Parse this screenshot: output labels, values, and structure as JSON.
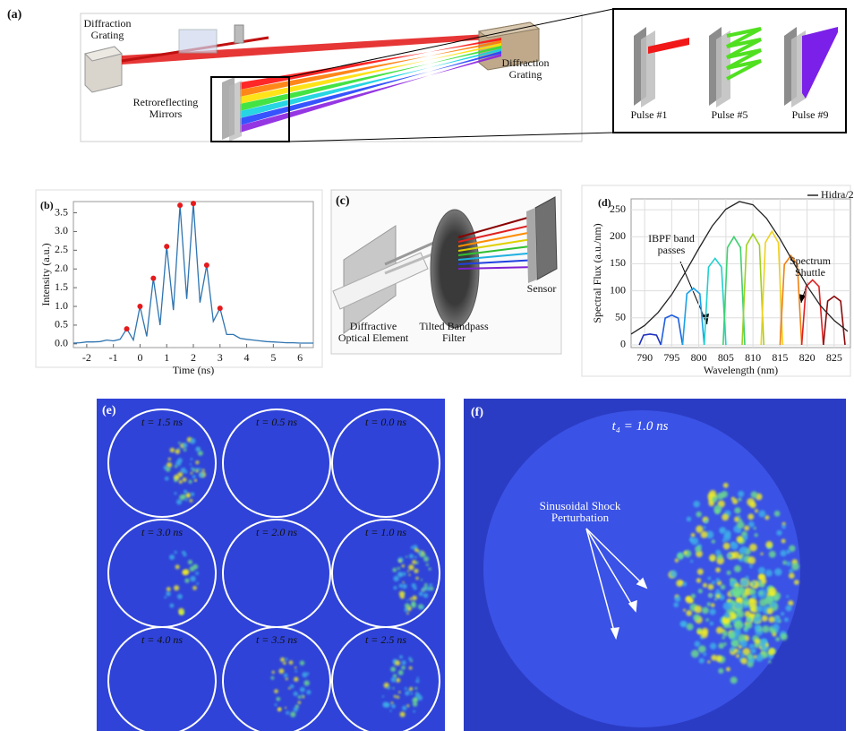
{
  "panel_a": {
    "label": "(a)",
    "left_grating": "Diffraction Grating",
    "right_grating": "Diffraction Grating",
    "mirrors": "Retroreflecting Mirrors",
    "pulses": [
      "Pulse #1",
      "Pulse #5",
      "Pulse #9"
    ]
  },
  "chart_data": [
    {
      "type": "line",
      "label": "(b)",
      "xlabel": "Time (ns)",
      "ylabel": "Intensity (a.u.)",
      "xlim": [
        -2.5,
        6.5
      ],
      "ylim": [
        -0.1,
        3.8
      ],
      "xticks": [
        -2,
        -1,
        0,
        1,
        2,
        3,
        4,
        5,
        6
      ],
      "yticks": [
        {
          "value": 0,
          "label": "0.0"
        },
        0.5,
        {
          "value": 1,
          "label": "1.0"
        },
        1.5,
        {
          "value": 2,
          "label": "2.0"
        },
        2.5,
        {
          "value": 3,
          "label": "3.0"
        },
        3.5
      ],
      "x": [
        -2.5,
        -2.25,
        -2,
        -1.75,
        -1.5,
        -1.25,
        -1,
        -0.75,
        -0.5,
        -0.25,
        0,
        0.25,
        0.5,
        0.75,
        1,
        1.25,
        1.5,
        1.75,
        2,
        2.25,
        2.5,
        2.75,
        3,
        3.25,
        3.5,
        3.75,
        4,
        4.25,
        4.5,
        4.75,
        5,
        5.25,
        5.5,
        5.75,
        6,
        6.25,
        6.5
      ],
      "series": [
        {
          "color": "#2f74b0",
          "values": [
            0.02,
            0.03,
            0.05,
            0.05,
            0.06,
            0.1,
            0.08,
            0.12,
            0.4,
            0.1,
            1.0,
            0.2,
            1.75,
            0.5,
            2.6,
            0.9,
            3.7,
            1.2,
            3.75,
            1.1,
            2.1,
            0.6,
            0.95,
            0.25,
            0.25,
            0.15,
            0.12,
            0.1,
            0.08,
            0.06,
            0.05,
            0.04,
            0.03,
            0.03,
            0.02,
            0.02,
            0.02
          ]
        }
      ],
      "peaks": {
        "color": "#e41a1c",
        "x": [
          -0.5,
          0,
          0.5,
          1,
          1.5,
          2,
          2.5,
          3
        ],
        "values": [
          0.4,
          1.0,
          1.75,
          2.6,
          3.7,
          3.75,
          2.1,
          0.95
        ]
      }
    },
    {
      "type": "line",
      "label": "(d)",
      "xlabel": "Wavelength (nm)",
      "ylabel": "Spectral Flux (a.u./nm)",
      "xlim": [
        787.5,
        828
      ],
      "ylim": [
        -5,
        270
      ],
      "xticks": [
        790,
        795,
        800,
        805,
        810,
        815,
        820,
        825
      ],
      "yticks": [
        0,
        50,
        100,
        150,
        200,
        250
      ],
      "grid": true,
      "legend": "upper right",
      "annotations": [
        "IBPF band passes",
        "Spectrum Shuttle"
      ],
      "series": [
        {
          "name": "Hidra/2",
          "color": "#222222",
          "x": [
            787.5,
            790,
            792.5,
            795,
            797.5,
            800,
            802.5,
            805,
            807.5,
            810,
            812.5,
            815,
            817.5,
            820,
            822.5,
            825,
            827.5
          ],
          "values": [
            20,
            36,
            60,
            93,
            134,
            178,
            220,
            251,
            265,
            259,
            234,
            196,
            152,
            109,
            72,
            45,
            25
          ]
        }
      ],
      "bands": [
        {
          "color": "#2030c0",
          "x": [
            789,
            789.8,
            791,
            792.2,
            793
          ],
          "values": [
            0,
            18,
            20,
            18,
            0
          ]
        },
        {
          "color": "#2060e0",
          "x": [
            793,
            793.8,
            795,
            796.2,
            797
          ],
          "values": [
            0,
            49.5,
            55,
            49.5,
            0
          ]
        },
        {
          "color": "#1aa0e8",
          "x": [
            797,
            797.8,
            799,
            800.2,
            801
          ],
          "values": [
            0,
            94.5,
            105,
            94.5,
            0
          ]
        },
        {
          "color": "#20d0d0",
          "x": [
            801,
            801.8,
            803,
            804.2,
            805
          ],
          "values": [
            0,
            144,
            160,
            144,
            0
          ]
        },
        {
          "color": "#40d070",
          "x": [
            804.5,
            805.3,
            806.5,
            807.7,
            808.5
          ],
          "values": [
            0,
            180,
            200,
            180,
            0
          ]
        },
        {
          "color": "#a0d020",
          "x": [
            808,
            808.8,
            810,
            811.2,
            812
          ],
          "values": [
            0,
            184.5,
            205,
            184.5,
            0
          ]
        },
        {
          "color": "#f0d020",
          "x": [
            811.5,
            812.3,
            813.5,
            814.7,
            815.5
          ],
          "values": [
            0,
            189,
            210,
            189,
            0
          ]
        },
        {
          "color": "#f08010",
          "x": [
            815,
            815.8,
            817,
            818.2,
            819
          ],
          "values": [
            0,
            148.5,
            165,
            148.5,
            0
          ]
        },
        {
          "color": "#e02020",
          "x": [
            819,
            819.8,
            821,
            822.2,
            823
          ],
          "values": [
            0,
            108,
            120,
            108,
            0
          ]
        },
        {
          "color": "#8b0a0a",
          "x": [
            823,
            823.8,
            825,
            826.2,
            827
          ],
          "values": [
            0,
            81,
            90,
            81,
            0
          ]
        }
      ]
    }
  ],
  "panel_c": {
    "label": "(c)",
    "sensor": "Sensor",
    "element": "Diffractive Optical Element",
    "filter": "Tilted Bandpass Filter"
  },
  "panel_e": {
    "label": "(e)",
    "frames": [
      "t = 1.5 ns",
      "t = 0.5 ns",
      "t = 0.0 ns",
      "t = 3.0 ns",
      "t = 2.0 ns",
      "t = 1.0 ns",
      "t = 4.0 ns",
      "t = 3.5 ns",
      "t = 2.5 ns"
    ]
  },
  "panel_f": {
    "label": "(f)",
    "time": "t₄ = 1.0 ns",
    "annotation": "Sinusoidal Shock Perturbation"
  }
}
